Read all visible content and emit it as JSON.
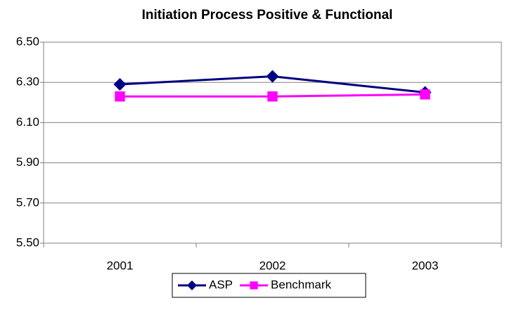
{
  "chart_data": {
    "type": "line",
    "title": "Initiation Process Positive & Functional",
    "categories": [
      "2001",
      "2002",
      "2003"
    ],
    "series": [
      {
        "name": "ASP",
        "color": "#000080",
        "marker": "diamond",
        "values": [
          6.29,
          6.33,
          6.25
        ]
      },
      {
        "name": "Benchmark",
        "color": "#ff00ff",
        "marker": "square",
        "values": [
          6.23,
          6.23,
          6.24
        ]
      }
    ],
    "ylim": [
      5.5,
      6.5
    ],
    "yticks": [
      {
        "value": 5.5,
        "label": "5.50"
      },
      {
        "value": 5.7,
        "label": "5.70"
      },
      {
        "value": 5.9,
        "label": "5.90"
      },
      {
        "value": 6.1,
        "label": "6.10"
      },
      {
        "value": 6.3,
        "label": "6.30"
      },
      {
        "value": 6.5,
        "label": "6.50"
      }
    ],
    "grid": true,
    "legend": "bottom"
  }
}
